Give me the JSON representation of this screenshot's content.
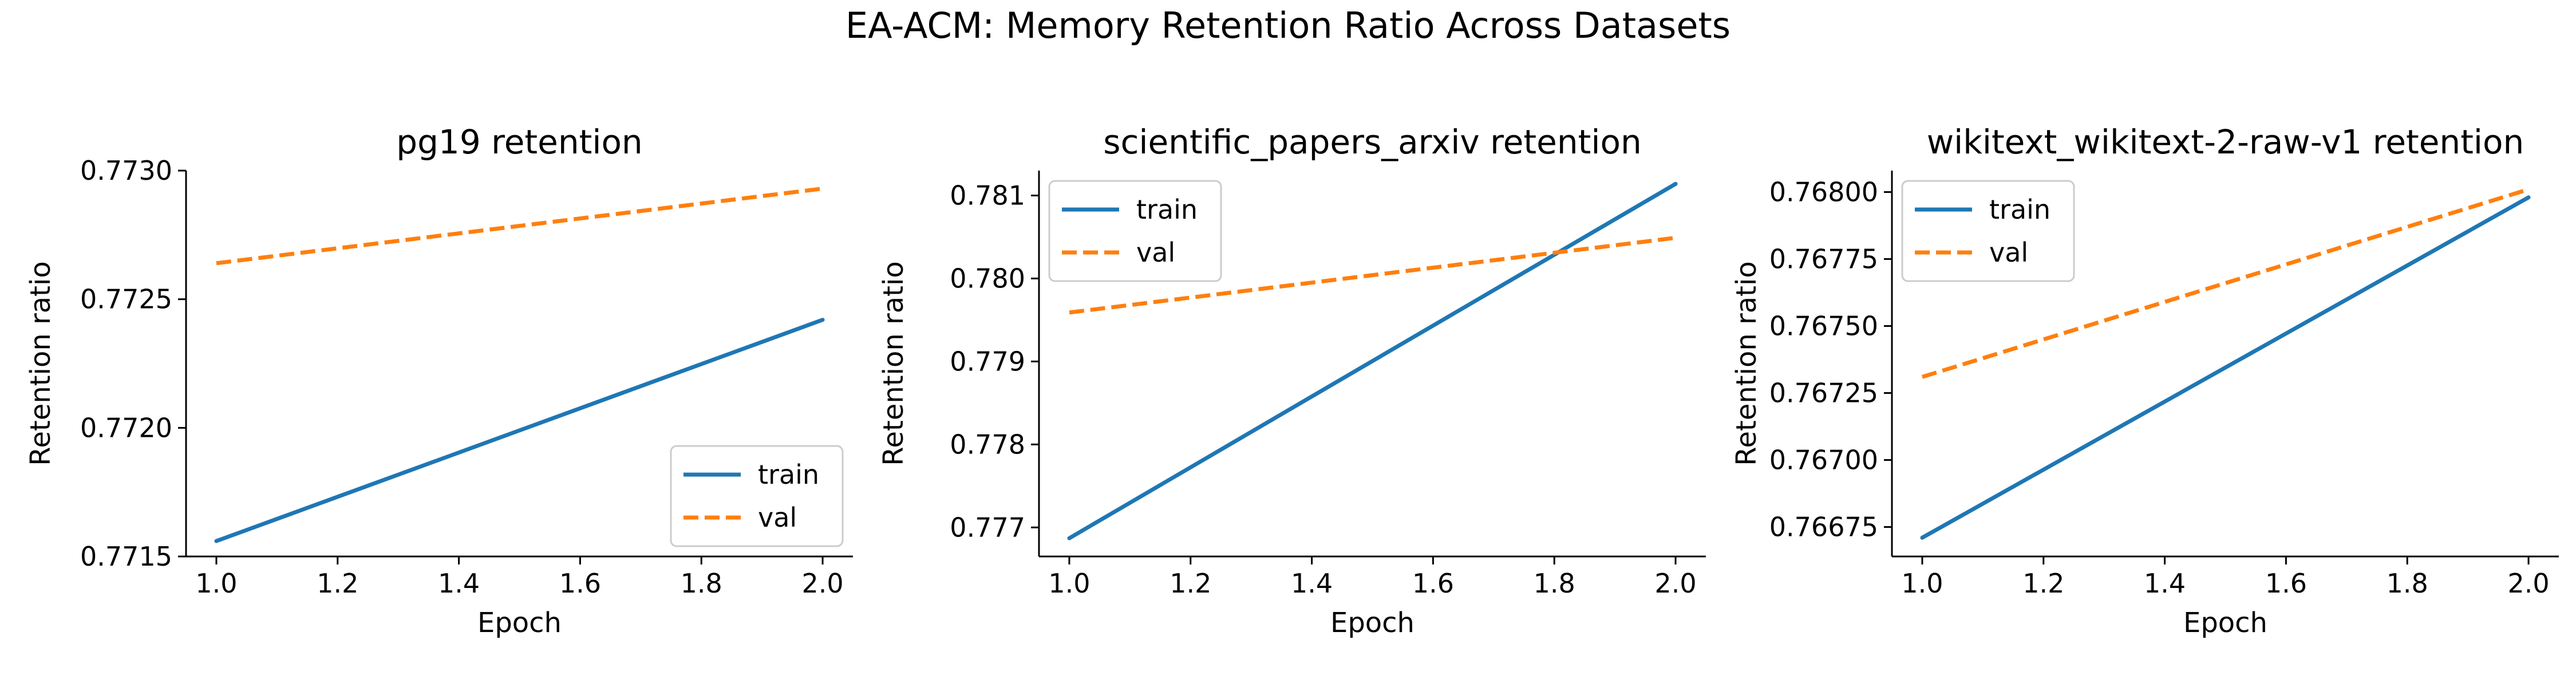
{
  "figure": {
    "title": "EA-ACM: Memory Retention Ratio Across Datasets",
    "colors": {
      "train": "#1f77b4",
      "val": "#ff7f0e"
    }
  },
  "chart_data": [
    {
      "type": "line",
      "title": "pg19 retention",
      "xlabel": "Epoch",
      "ylabel": "Retention ratio",
      "xlim": [
        0.95,
        2.05
      ],
      "ylim": [
        0.7715,
        0.773
      ],
      "xticks": [
        1.0,
        1.2,
        1.4,
        1.6,
        1.8,
        2.0
      ],
      "xtick_labels": [
        "1.0",
        "1.2",
        "1.4",
        "1.6",
        "1.8",
        "2.0"
      ],
      "yticks": [
        0.7715,
        0.772,
        0.7725,
        0.773
      ],
      "ytick_labels": [
        "0.7715",
        "0.7720",
        "0.7725",
        "0.7730"
      ],
      "legend_loc": "lower-right",
      "series": [
        {
          "name": "train",
          "style": "solid",
          "x": [
            1.0,
            2.0
          ],
          "y": [
            0.77156,
            0.77242
          ]
        },
        {
          "name": "val",
          "style": "dashed",
          "x": [
            1.0,
            2.0
          ],
          "y": [
            0.77264,
            0.77293
          ]
        }
      ]
    },
    {
      "type": "line",
      "title": "scientific_papers_arxiv retention",
      "xlabel": "Epoch",
      "ylabel": "Retention ratio",
      "xlim": [
        0.95,
        2.05
      ],
      "ylim": [
        0.77665,
        0.7813
      ],
      "xticks": [
        1.0,
        1.2,
        1.4,
        1.6,
        1.8,
        2.0
      ],
      "xtick_labels": [
        "1.0",
        "1.2",
        "1.4",
        "1.6",
        "1.8",
        "2.0"
      ],
      "yticks": [
        0.777,
        0.778,
        0.779,
        0.78,
        0.781
      ],
      "ytick_labels": [
        "0.777",
        "0.778",
        "0.779",
        "0.780",
        "0.781"
      ],
      "legend_loc": "upper-left",
      "series": [
        {
          "name": "train",
          "style": "solid",
          "x": [
            1.0,
            2.0
          ],
          "y": [
            0.77687,
            0.78114
          ]
        },
        {
          "name": "val",
          "style": "dashed",
          "x": [
            1.0,
            2.0
          ],
          "y": [
            0.77959,
            0.78049
          ]
        }
      ]
    },
    {
      "type": "line",
      "title": "wikitext_wikitext-2-raw-v1 retention",
      "xlabel": "Epoch",
      "ylabel": "Retention ratio",
      "xlim": [
        0.95,
        2.05
      ],
      "ylim": [
        0.76664,
        0.76808
      ],
      "xticks": [
        1.0,
        1.2,
        1.4,
        1.6,
        1.8,
        2.0
      ],
      "xtick_labels": [
        "1.0",
        "1.2",
        "1.4",
        "1.6",
        "1.8",
        "2.0"
      ],
      "yticks": [
        0.76675,
        0.767,
        0.76725,
        0.7675,
        0.76775,
        0.768
      ],
      "ytick_labels": [
        "0.76675",
        "0.76700",
        "0.76725",
        "0.76750",
        "0.76775",
        "0.76800"
      ],
      "legend_loc": "upper-left",
      "series": [
        {
          "name": "train",
          "style": "solid",
          "x": [
            1.0,
            2.0
          ],
          "y": [
            0.76671,
            0.76798
          ]
        },
        {
          "name": "val",
          "style": "dashed",
          "x": [
            1.0,
            2.0
          ],
          "y": [
            0.76731,
            0.76801
          ]
        }
      ]
    }
  ]
}
